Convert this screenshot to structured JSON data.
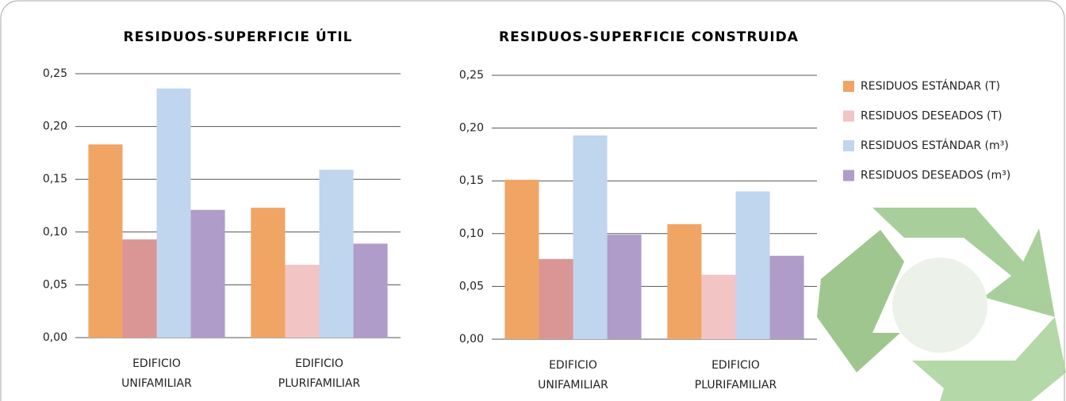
{
  "chart_data": [
    {
      "type": "bar",
      "title": "RESIDUOS-SUPERFICIE ÚTIL",
      "categories": [
        "EDIFICIO UNIFAMILIAR",
        "EDIFICIO PLURIFAMILIAR"
      ],
      "series": [
        {
          "color": "#f0a564",
          "values": [
            0.183,
            0.123
          ]
        },
        {
          "colors": [
            "#d99694",
            "#f2c4c4"
          ],
          "values": [
            0.093,
            0.069
          ]
        },
        {
          "color": "#c0d5ee",
          "values": [
            0.236,
            0.159
          ]
        },
        {
          "color": "#b09cc8",
          "values": [
            0.121,
            0.089
          ]
        }
      ],
      "ylim": [
        0,
        0.25
      ],
      "yticks": [
        {
          "value": 0,
          "label": "0,00"
        },
        {
          "value": 0.05,
          "label": "0,05"
        },
        {
          "value": 0.1,
          "label": "0,10"
        },
        {
          "value": 0.15,
          "label": "0,15"
        },
        {
          "value": 0.2,
          "label": "0,20"
        },
        {
          "value": 0.25,
          "label": "0,25"
        }
      ],
      "grid": true
    },
    {
      "type": "bar",
      "title": "RESIDUOS-SUPERFICIE CONSTRUIDA",
      "categories": [
        "EDIFICIO UNIFAMILIAR",
        "EDIFICIO PLURIFAMILIAR"
      ],
      "series": [
        {
          "name": "RESIDUOS ESTÁNDAR (T)",
          "color": "#f0a564",
          "values": [
            0.151,
            0.109
          ]
        },
        {
          "name": "RESIDUOS DESEADOS (T)",
          "color": "#f2c4c4",
          "colors": [
            "#d99694",
            "#f2c4c4"
          ],
          "values": [
            0.076,
            0.061
          ]
        },
        {
          "name": "RESIDUOS ESTÁNDAR (m³)",
          "color": "#c0d5ee",
          "values": [
            0.193,
            0.14
          ]
        },
        {
          "name": "RESIDUOS DESEADOS (m³)",
          "color": "#b09cc8",
          "values": [
            0.099,
            0.079
          ]
        }
      ],
      "ylim": [
        0,
        0.25
      ],
      "yticks": [
        {
          "value": 0,
          "label": "0,00"
        },
        {
          "value": 0.05,
          "label": "0,05"
        },
        {
          "value": 0.1,
          "label": "0,10"
        },
        {
          "value": 0.15,
          "label": "0,15"
        },
        {
          "value": 0.2,
          "label": "0,20"
        },
        {
          "value": 0.25,
          "label": "0,25"
        }
      ],
      "grid": true
    }
  ]
}
